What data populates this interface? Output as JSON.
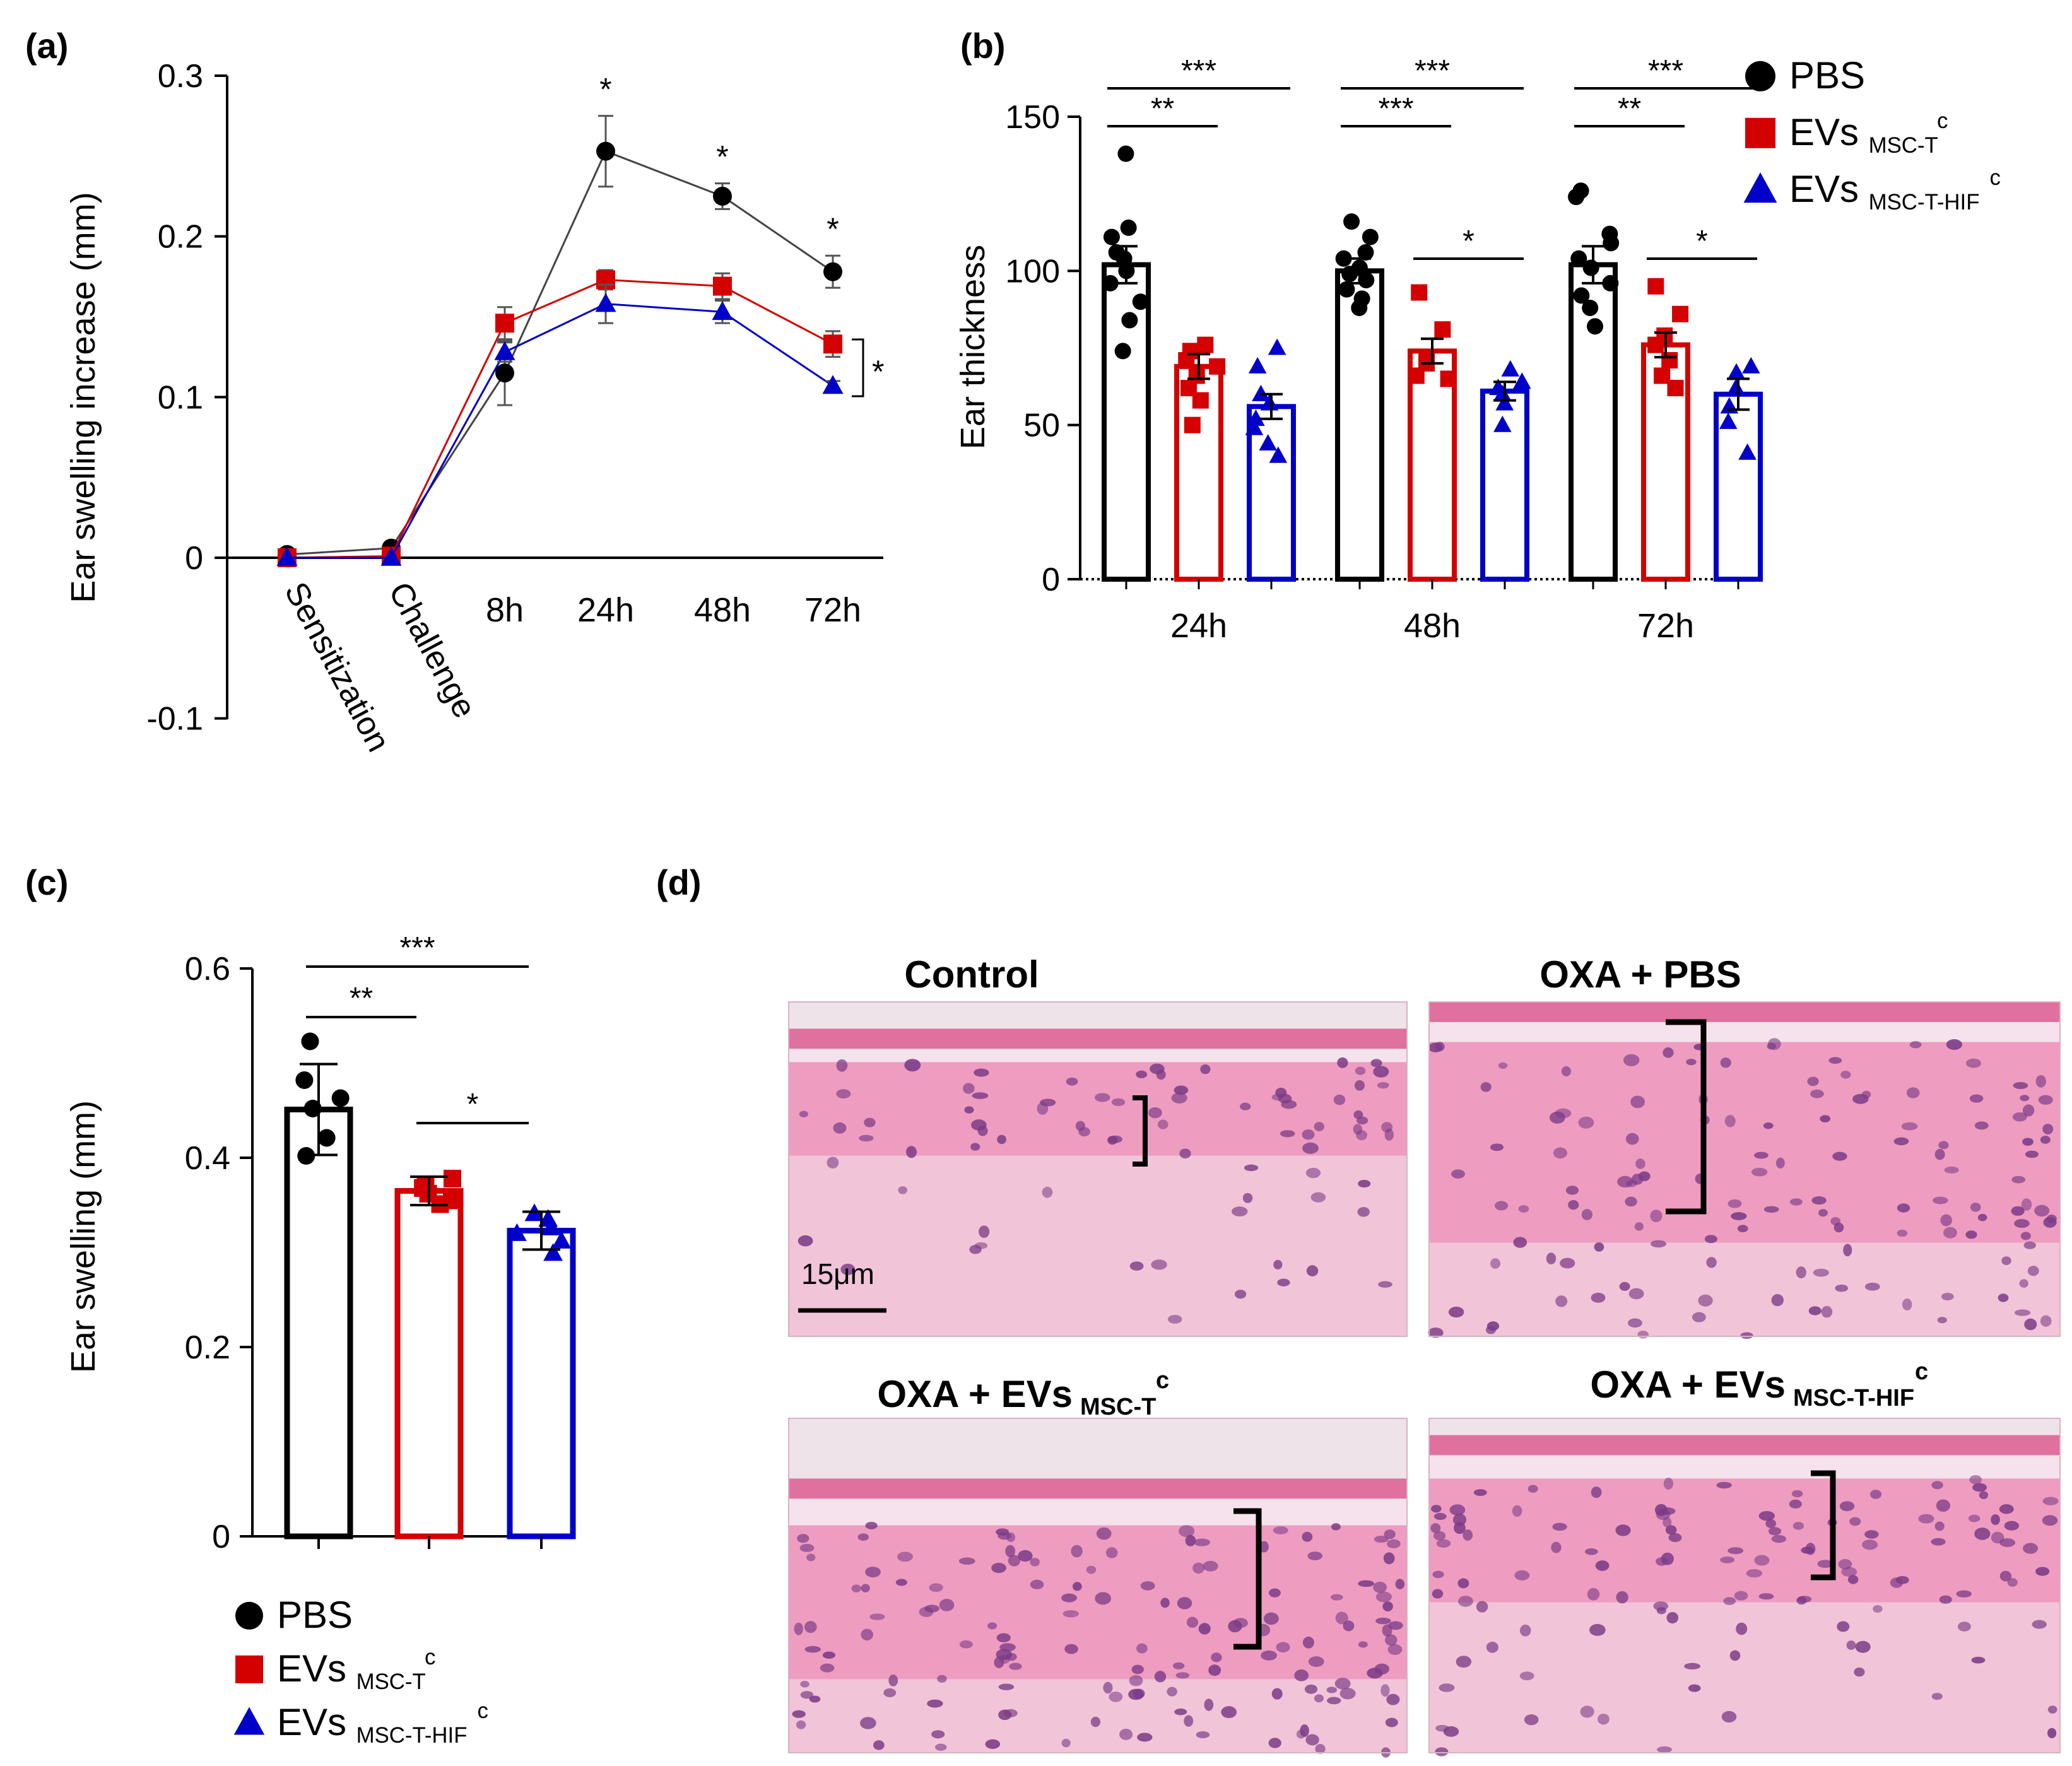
{
  "colors": {
    "pbs": "#000000",
    "msc_t": "#d40000",
    "msc_t_hif": "#0000c8",
    "he_pink": "#ec8fb8",
    "he_nuclei": "#7a3b86",
    "he_bg": "#f6e2ec"
  },
  "legend": {
    "items": [
      {
        "key": "pbs",
        "marker": "circle",
        "main": "PBS",
        "sub": "",
        "sup": ""
      },
      {
        "key": "msc_t",
        "marker": "square",
        "main": "EVs",
        "sub": "MSC-T",
        "sup": "c"
      },
      {
        "key": "msc_t_hif",
        "marker": "triangle",
        "main": "EVs",
        "sub": "MSC-T-HIF",
        "sup": "c"
      }
    ]
  },
  "chart_data": [
    {
      "panel": "(a)",
      "type": "line",
      "ylabel": "Ear swelling increase (mm)",
      "xlabel": "",
      "ylim": [
        -0.1,
        0.3
      ],
      "yticks": [
        {
          "value": 0.3,
          "label": "0.3"
        },
        {
          "value": 0.2,
          "label": "0.2"
        },
        {
          "value": 0.1,
          "label": "0.1"
        },
        {
          "value": 0,
          "label": "0"
        },
        {
          "value": -0.1,
          "label": "-0.1"
        }
      ],
      "categories": [
        "Sensitization",
        "Challenge",
        "8h",
        "24h",
        "48h",
        "72h"
      ],
      "series": [
        {
          "name": "PBS",
          "key": "pbs",
          "marker": "circle",
          "line": "#444444",
          "values": [
            0.002,
            0.006,
            0.115,
            0.253,
            0.225,
            0.178
          ],
          "errors": [
            0.001,
            0.002,
            0.02,
            0.022,
            0.008,
            0.01
          ]
        },
        {
          "name": "EVs MSC-Tc",
          "key": "msc_t",
          "marker": "square",
          "line": "#d40000",
          "values": [
            0.0,
            0.001,
            0.146,
            0.173,
            0.169,
            0.133
          ],
          "errors": [
            0.0,
            0.0,
            0.01,
            0.006,
            0.008,
            0.008
          ]
        },
        {
          "name": "EVs MSC-T-HIFc",
          "key": "msc_t_hif",
          "marker": "triangle",
          "line": "#0000c8",
          "values": [
            0.0,
            0.0,
            0.128,
            0.158,
            0.153,
            0.107
          ],
          "errors": [
            0.0,
            0.0,
            0.006,
            0.012,
            0.007,
            0.003
          ]
        }
      ],
      "annotations": [
        "*",
        "*",
        "*",
        "*"
      ]
    },
    {
      "panel": "(b)",
      "type": "bar",
      "ylabel": "Ear thickness",
      "xlabel": "",
      "ylim": [
        0,
        150
      ],
      "yticks": [
        {
          "value": 150,
          "label": "150"
        },
        {
          "value": 100,
          "label": "100"
        },
        {
          "value": 50,
          "label": "50"
        },
        {
          "value": 0,
          "label": "0"
        }
      ],
      "categories": [
        "24h",
        "48h",
        "72h"
      ],
      "series": [
        {
          "name": "PBS",
          "key": "pbs",
          "marker": "circle",
          "values": [
            102,
            100,
            102
          ],
          "errors": [
            6,
            4,
            6
          ],
          "points": [
            [
              138,
              114,
              111,
              106,
              104,
              100,
              96,
              90,
              84,
              74
            ],
            [
              116,
              111,
              106,
              104,
              101,
              99,
              97,
              94,
              91,
              88
            ],
            [
              126,
              124,
              112,
              109,
              104,
              101,
              96,
              92,
              88,
              82
            ]
          ]
        },
        {
          "name": "EVs MSC-Tc",
          "key": "msc_t",
          "marker": "square",
          "values": [
            69,
            74,
            76
          ],
          "errors": [
            4,
            4,
            4
          ],
          "points": [
            [
              76,
              74,
              71,
              69,
              66,
              62,
              58,
              50
            ],
            [
              93,
              81,
              72,
              70,
              66,
              65
            ],
            [
              95,
              86,
              79,
              76,
              71,
              66,
              62
            ]
          ]
        },
        {
          "name": "EVs MSC-T-HIFc",
          "key": "msc_t_hif",
          "marker": "triangle",
          "values": [
            56,
            61,
            60
          ],
          "errors": [
            4,
            3,
            5
          ],
          "points": [
            [
              75,
              69,
              60,
              57,
              52,
              49,
              44,
              40
            ],
            [
              68,
              64,
              62,
              60,
              57,
              50
            ],
            [
              69,
              67,
              62,
              56,
              51,
              41
            ]
          ]
        }
      ],
      "significance": [
        {
          "group": 0,
          "from": 0,
          "to": 2,
          "label": "***"
        },
        {
          "group": 0,
          "from": 0,
          "to": 1,
          "label": "**"
        },
        {
          "group": 1,
          "from": 0,
          "to": 2,
          "label": "***"
        },
        {
          "group": 1,
          "from": 0,
          "to": 1,
          "label": "***"
        },
        {
          "group": 1,
          "from": 1,
          "to": 2,
          "label": "*"
        },
        {
          "group": 2,
          "from": 0,
          "to": 2,
          "label": "***"
        },
        {
          "group": 2,
          "from": 0,
          "to": 1,
          "label": "**"
        },
        {
          "group": 2,
          "from": 1,
          "to": 2,
          "label": "*"
        }
      ]
    },
    {
      "panel": "(c)",
      "type": "bar",
      "ylabel": "Ear swelling (mm)",
      "xlabel": "",
      "ylim": [
        0,
        0.6
      ],
      "yticks": [
        {
          "value": 0.6,
          "label": "0.6"
        },
        {
          "value": 0.4,
          "label": "0.4"
        },
        {
          "value": 0.2,
          "label": "0.2"
        },
        {
          "value": 0,
          "label": "0"
        }
      ],
      "categories": [
        "PBS",
        "EVs MSC-Tc",
        "EVs MSC-T-HIFc"
      ],
      "series": [
        {
          "name": "Ear swelling",
          "values": [
            0.451,
            0.365,
            0.323
          ],
          "errors": [
            0.048,
            0.015,
            0.02
          ],
          "points": [
            [
              0.523,
              0.482,
              0.463,
              0.452,
              0.421,
              0.402
            ],
            [
              0.378,
              0.371,
              0.368,
              0.362,
              0.355,
              0.351
            ],
            [
              0.341,
              0.335,
              0.326,
              0.32,
              0.312,
              0.299
            ]
          ]
        }
      ],
      "significance": [
        {
          "from": 0,
          "to": 2,
          "label": "***"
        },
        {
          "from": 0,
          "to": 1,
          "label": "**"
        },
        {
          "from": 1,
          "to": 2,
          "label": "*"
        }
      ]
    }
  ],
  "panels": {
    "a_label": "(a)",
    "b_label": "(b)",
    "c_label": "(c)",
    "d_label": "(d)",
    "a_bracket_star": "*",
    "d_images": [
      {
        "title": "Control",
        "title_sub": "",
        "title_sup": ""
      },
      {
        "title": "OXA + PBS",
        "title_sub": "",
        "title_sup": ""
      },
      {
        "title": "OXA + EVs",
        "title_sub": "MSC-T",
        "title_sup": "c"
      },
      {
        "title": "OXA +  EVs",
        "title_sub": "MSC-T-HIF",
        "title_sup": "c"
      }
    ],
    "scale_bar": "15μm"
  }
}
